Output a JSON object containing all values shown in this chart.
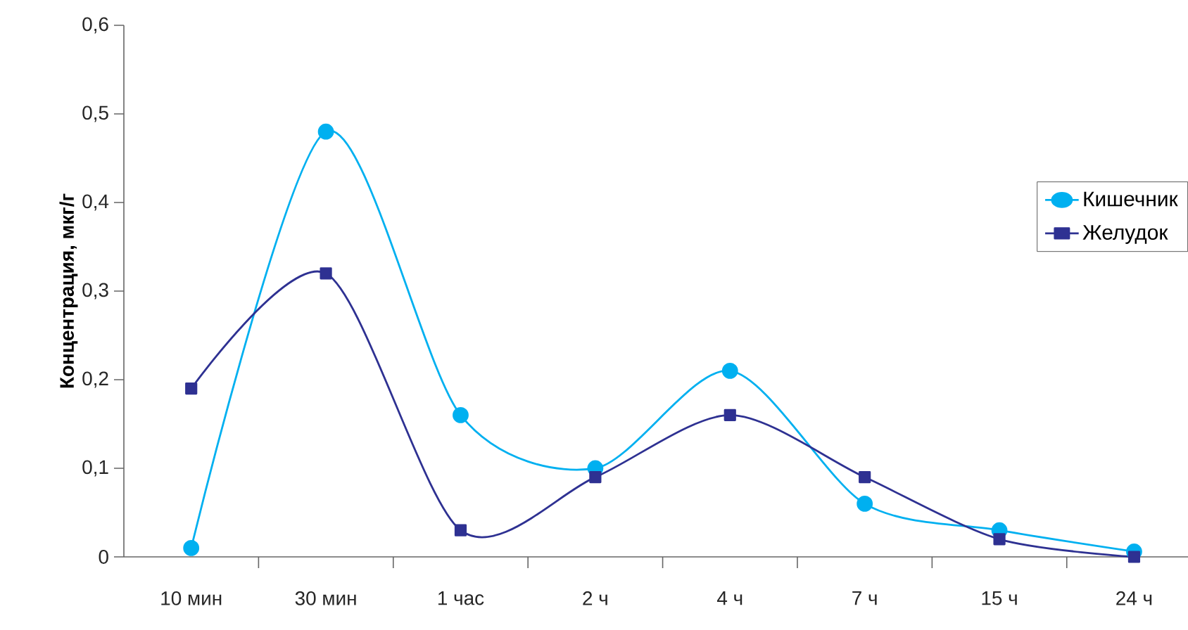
{
  "chart_data": {
    "type": "line",
    "ylabel": "Концентрация, мкг/г",
    "categories": [
      "10 мин",
      "30 мин",
      "1 час",
      "2 ч",
      "4 ч",
      "7 ч",
      "15 ч",
      "24 ч"
    ],
    "series": [
      {
        "name": "Кишечник",
        "color": "#00b0f0",
        "marker": "circle",
        "values": [
          0.01,
          0.48,
          0.16,
          0.1,
          0.21,
          0.06,
          0.03,
          0.006
        ]
      },
      {
        "name": "Желудок",
        "color": "#2e3192",
        "marker": "square",
        "values": [
          0.19,
          0.32,
          0.03,
          0.09,
          0.16,
          0.09,
          0.02,
          0.0
        ]
      }
    ],
    "ylim": [
      0,
      0.6
    ],
    "yticks": [
      0,
      {
        "value": 0.1,
        "label": "0,1"
      },
      {
        "value": 0.2,
        "label": "0,2"
      },
      {
        "value": 0.3,
        "label": "0,3"
      },
      {
        "value": 0.4,
        "label": "0,4"
      },
      {
        "value": 0.5,
        "label": "0,5"
      },
      {
        "value": 0.6,
        "label": "0,6"
      }
    ],
    "grid": false,
    "legend": "right",
    "line_style": "solid"
  }
}
